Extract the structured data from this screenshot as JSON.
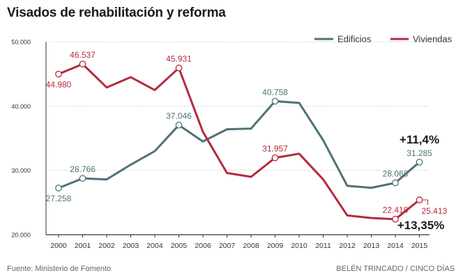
{
  "title": "Visados de rehabilitación y reforma",
  "footer": {
    "source": "Fuente: Ministerio de Fomento",
    "credit": "BELÉN TRINCADO / CINCO DÍAS"
  },
  "colors": {
    "edificios": "#4e7277",
    "viviendas": "#b52a3c",
    "axis": "#333333",
    "grid": "#c8c8c8",
    "text": "#333333"
  },
  "chart_data": {
    "type": "line",
    "title": "Visados de rehabilitación y reforma",
    "xlabel": "",
    "ylabel": "",
    "x": [
      2000,
      2001,
      2002,
      2003,
      2004,
      2005,
      2006,
      2007,
      2008,
      2009,
      2010,
      2011,
      2012,
      2013,
      2014,
      2015
    ],
    "ylim": [
      20000,
      50000
    ],
    "yticks": [
      20000,
      30000,
      40000,
      50000
    ],
    "ytick_labels": [
      "20.000",
      "30.000",
      "40.000",
      "50.000"
    ],
    "xtick_labels": [
      "2000",
      "2001",
      "2002",
      "2003",
      "2004",
      "2005",
      "2006",
      "2007",
      "2008",
      "2009",
      "2010",
      "2011",
      "2012",
      "2013",
      "2014",
      "2015"
    ],
    "legend_position": "top-right",
    "series": [
      {
        "name": "Edificios",
        "color": "#4e7277",
        "values": [
          27258,
          28766,
          28600,
          30900,
          33000,
          37046,
          34500,
          36400,
          36500,
          40758,
          40500,
          34700,
          27600,
          27300,
          28068,
          31285
        ],
        "markers": [
          {
            "index": 0,
            "label": "27.258",
            "label_pos": "below"
          },
          {
            "index": 1,
            "label": "28.766",
            "label_pos": "above"
          },
          {
            "index": 5,
            "label": "37.046",
            "label_pos": "above"
          },
          {
            "index": 9,
            "label": "40.758",
            "label_pos": "above"
          },
          {
            "index": 14,
            "label": "28.068",
            "label_pos": "above"
          },
          {
            "index": 15,
            "label": "31.285",
            "label_pos": "above"
          }
        ]
      },
      {
        "name": "Viviendas",
        "color": "#b52a3c",
        "values": [
          44980,
          46537,
          42900,
          44500,
          42500,
          45931,
          36000,
          29600,
          29000,
          31957,
          32600,
          28600,
          23000,
          22600,
          22418,
          25413
        ],
        "markers": [
          {
            "index": 0,
            "label": "44.980",
            "label_pos": "below"
          },
          {
            "index": 1,
            "label": "46.537",
            "label_pos": "above"
          },
          {
            "index": 5,
            "label": "45.931",
            "label_pos": "above"
          },
          {
            "index": 9,
            "label": "31.957",
            "label_pos": "above"
          },
          {
            "index": 14,
            "label": "22.418",
            "label_pos": "above"
          },
          {
            "index": 15,
            "label": "25.413",
            "label_pos": "right"
          }
        ]
      }
    ],
    "annotations": [
      {
        "text": "+11,4%",
        "series": "Edificios",
        "index": 15
      },
      {
        "text": "+13,35%",
        "series": "Viviendas",
        "index": 15
      }
    ]
  }
}
